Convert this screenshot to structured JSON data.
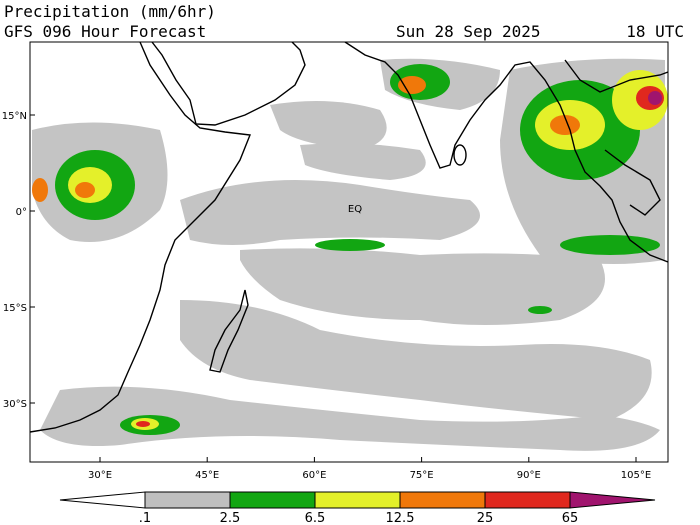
{
  "header": {
    "title": "Precipitation (mm/6hr)",
    "subtitle": "GFS 096 Hour Forecast",
    "date": "Sun 28 Sep 2025",
    "time": "18 UTC"
  },
  "map": {
    "lat_labels": [
      "15°N",
      "0°",
      "15°S",
      "30°S"
    ],
    "lon_labels": [
      "30°E",
      "45°E",
      "60°E",
      "75°E",
      "90°E",
      "105°E"
    ],
    "equator_label": "EQ"
  },
  "legend": {
    "labels": [
      ".1",
      "2.5",
      "6.5",
      "12.5",
      "25",
      "65"
    ],
    "colors": [
      "#ffffff",
      "#bfbfbf",
      "#12a612",
      "#e4f02a",
      "#f0780a",
      "#e0281e",
      "#a0146e"
    ]
  }
}
